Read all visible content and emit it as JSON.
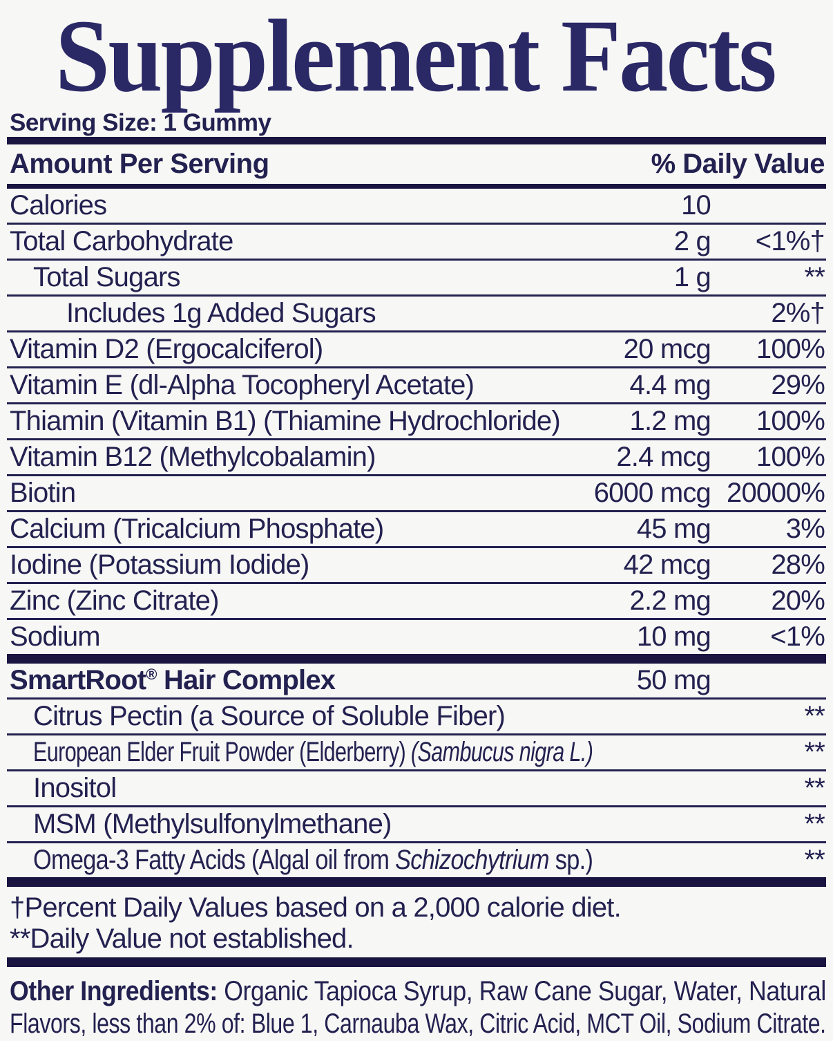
{
  "title": "Supplement Facts",
  "serving_size": "Serving Size: 1 Gummy",
  "colors": {
    "text_navy": "#232150",
    "bar_navy": "#191540",
    "title_navy": "#2b2866",
    "background": "#f7f7f5"
  },
  "table": {
    "header_left": "Amount Per Serving",
    "header_right": "% Daily Value",
    "rows": [
      {
        "indent": 0,
        "label": [
          {
            "t": "Calories"
          }
        ],
        "amount": "10",
        "dv": ""
      },
      {
        "indent": 0,
        "label": [
          {
            "t": "Total Carbohydrate"
          }
        ],
        "amount": "2 g",
        "dv": "<1%†"
      },
      {
        "indent": 1,
        "label": [
          {
            "t": "Total Sugars"
          }
        ],
        "amount": "1 g",
        "dv": "**"
      },
      {
        "indent": 2,
        "label": [
          {
            "t": "Includes 1g Added Sugars"
          }
        ],
        "amount": "",
        "dv": "2%†"
      },
      {
        "indent": 0,
        "label": [
          {
            "t": "Vitamin D2 (Ergocalciferol)"
          }
        ],
        "amount": "20 mcg",
        "dv": "100%"
      },
      {
        "indent": 0,
        "label": [
          {
            "t": "Vitamin E (dl-Alpha Tocopheryl Acetate)"
          }
        ],
        "amount": "4.4 mg",
        "dv": "29%"
      },
      {
        "indent": 0,
        "label": [
          {
            "t": "Thiamin (Vitamin B1) (Thiamine Hydrochloride)"
          }
        ],
        "amount": "1.2 mg",
        "dv": "100%"
      },
      {
        "indent": 0,
        "label": [
          {
            "t": "Vitamin B12 (Methylcobalamin)"
          }
        ],
        "amount": "2.4 mcg",
        "dv": "100%"
      },
      {
        "indent": 0,
        "label": [
          {
            "t": "Biotin"
          }
        ],
        "amount": "6000 mcg",
        "dv": "20000%"
      },
      {
        "indent": 0,
        "label": [
          {
            "t": "Calcium (Tricalcium Phosphate)"
          }
        ],
        "amount": "45 mg",
        "dv": "3%"
      },
      {
        "indent": 0,
        "label": [
          {
            "t": "Iodine (Potassium Iodide)"
          }
        ],
        "amount": "42 mcg",
        "dv": "28%"
      },
      {
        "indent": 0,
        "label": [
          {
            "t": "Zinc (Zinc Citrate)"
          }
        ],
        "amount": "2.2 mg",
        "dv": "20%"
      },
      {
        "indent": 0,
        "label": [
          {
            "t": "Sodium"
          }
        ],
        "amount": "10 mg",
        "dv": "<1%"
      }
    ]
  },
  "complex": {
    "rows": [
      {
        "indent": 0,
        "label": [
          {
            "t": "SmartRoot",
            "b": true
          },
          {
            "t": "®",
            "b": true,
            "sup": true
          },
          {
            "t": " Hair Complex",
            "b": true
          }
        ],
        "amount": "50 mg",
        "dv": ""
      },
      {
        "indent": 1,
        "label": [
          {
            "t": "Citrus Pectin (a Source of Soluble Fiber)"
          }
        ],
        "amount": "",
        "dv": "**"
      },
      {
        "indent": 1,
        "label": [
          {
            "t": "European Elder Fruit Powder (Elderberry) "
          },
          {
            "t": "(Sambucus nigra L.)",
            "i": true
          }
        ],
        "amount": "",
        "dv": "**"
      },
      {
        "indent": 1,
        "label": [
          {
            "t": "Inositol"
          }
        ],
        "amount": "",
        "dv": "**"
      },
      {
        "indent": 1,
        "label": [
          {
            "t": "MSM (Methylsulfonylmethane)"
          }
        ],
        "amount": "",
        "dv": "**"
      },
      {
        "indent": 1,
        "label": [
          {
            "t": "Omega-3 Fatty Acids (Algal oil from "
          },
          {
            "t": "Schizochytrium",
            "i": true
          },
          {
            "t": " sp.)"
          }
        ],
        "amount": "",
        "dv": "**"
      }
    ]
  },
  "footnotes": [
    "†Percent Daily Values based on a 2,000 calorie diet.",
    "**Daily Value not established."
  ],
  "other_ingredients": {
    "heading": "Other Ingredients:",
    "line1_rest": " Organic Tapioca Syrup, Raw Cane Sugar, Water, Natural",
    "line2": "Flavors, less than 2% of: Blue 1, Carnauba Wax, Citric Acid, MCT Oil, Sodium Citrate."
  }
}
